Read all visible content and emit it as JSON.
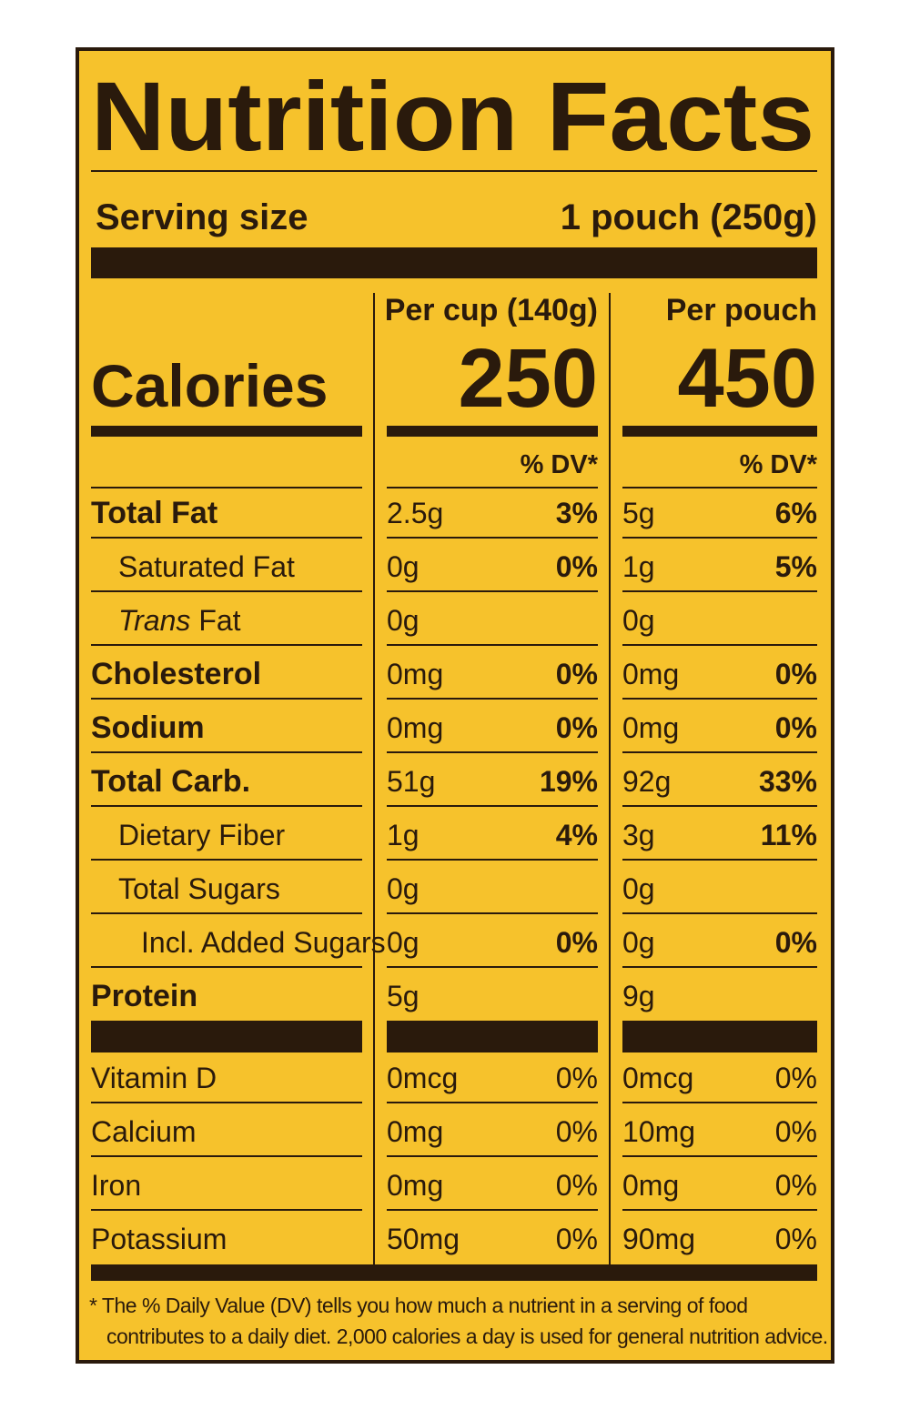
{
  "title": "Nutrition Facts",
  "serving": {
    "label": "Serving size",
    "value": "1 pouch (250g)"
  },
  "calories_label": "Calories",
  "columns": [
    {
      "header": "Per cup (140g)",
      "calories": "250",
      "dv_header": "% DV*"
    },
    {
      "header": "Per pouch",
      "calories": "450",
      "dv_header": "% DV*"
    }
  ],
  "nutrients": [
    {
      "name": "Total Fat",
      "style": "bold",
      "indent": 0,
      "values": [
        [
          "2.5g",
          "3%"
        ],
        [
          "5g",
          "6%"
        ]
      ]
    },
    {
      "name": "Saturated Fat",
      "style": "regular",
      "indent": 1,
      "values": [
        [
          "0g",
          "0%"
        ],
        [
          "1g",
          "5%"
        ]
      ]
    },
    {
      "italic_prefix": "Trans",
      "name": "Fat",
      "style": "regular",
      "indent": 1,
      "values": [
        [
          "0g",
          null
        ],
        [
          "0g",
          null
        ]
      ]
    },
    {
      "name": "Cholesterol",
      "style": "bold",
      "indent": 0,
      "values": [
        [
          "0mg",
          "0%"
        ],
        [
          "0mg",
          "0%"
        ]
      ]
    },
    {
      "name": "Sodium",
      "style": "bold",
      "indent": 0,
      "values": [
        [
          "0mg",
          "0%"
        ],
        [
          "0mg",
          "0%"
        ]
      ]
    },
    {
      "name": "Total Carb.",
      "style": "bold",
      "indent": 0,
      "values": [
        [
          "51g",
          "19%"
        ],
        [
          "92g",
          "33%"
        ]
      ]
    },
    {
      "name": "Dietary Fiber",
      "style": "regular",
      "indent": 1,
      "values": [
        [
          "1g",
          "4%"
        ],
        [
          "3g",
          "11%"
        ]
      ]
    },
    {
      "name": "Total Sugars",
      "style": "regular",
      "indent": 1,
      "values": [
        [
          "0g",
          null
        ],
        [
          "0g",
          null
        ]
      ]
    },
    {
      "name": "Incl. Added Sugars",
      "style": "regular",
      "indent": 2,
      "values": [
        [
          "0g",
          "0%"
        ],
        [
          "0g",
          "0%"
        ]
      ]
    },
    {
      "name": "Protein",
      "style": "bold",
      "indent": 0,
      "values": [
        [
          "5g",
          null
        ],
        [
          "9g",
          null
        ]
      ]
    }
  ],
  "vitamins": [
    {
      "name": "Vitamin D",
      "values": [
        [
          "0mcg",
          "0%"
        ],
        [
          "0mcg",
          "0%"
        ]
      ]
    },
    {
      "name": "Calcium",
      "values": [
        [
          "0mg",
          "0%"
        ],
        [
          "10mg",
          "0%"
        ]
      ]
    },
    {
      "name": "Iron",
      "values": [
        [
          "0mg",
          "0%"
        ],
        [
          "0mg",
          "0%"
        ]
      ]
    },
    {
      "name": "Potassium",
      "values": [
        [
          "50mg",
          "0%"
        ],
        [
          "90mg",
          "0%"
        ]
      ]
    }
  ],
  "footnote": "* The % Daily Value (DV) tells you how much a nutrient in a serving of food contributes to a daily diet. 2,000 calories a day is used for general nutrition advice."
}
